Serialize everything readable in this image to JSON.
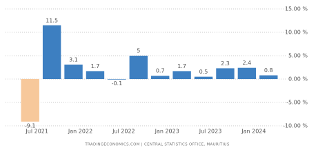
{
  "chart_data": {
    "type": "bar",
    "categories": [
      "Jul 2021",
      null,
      "Jan 2022",
      null,
      "Jul 2022",
      null,
      "Jan 2023",
      null,
      "Jul 2023",
      null,
      "Jan 2024",
      null
    ],
    "values": [
      -9.1,
      11.5,
      3.1,
      1.7,
      -0.1,
      5,
      0.7,
      1.7,
      0.5,
      2.3,
      2.4,
      0.8
    ],
    "colors": [
      "#f7c89b",
      "#3d7fc1",
      "#3d7fc1",
      "#3d7fc1",
      "#3d7fc1",
      "#3d7fc1",
      "#3d7fc1",
      "#3d7fc1",
      "#3d7fc1",
      "#3d7fc1",
      "#3d7fc1",
      "#3d7fc1"
    ],
    "ylim": [
      -10,
      15
    ],
    "yticks": [
      {
        "value": -10,
        "label": "-10.00 %"
      },
      {
        "value": -5,
        "label": "-5.00 %"
      },
      {
        "value": 0,
        "label": "0.00 %"
      },
      {
        "value": 5,
        "label": "5.00 %"
      },
      {
        "value": 10,
        "label": "10.00 %"
      },
      {
        "value": 15,
        "label": "15.00 %"
      }
    ],
    "grid": true,
    "source": "TRADINGECONOMICS.COM  |  CENTRAL STATISTICS OFFICE, MAURITIUS"
  }
}
